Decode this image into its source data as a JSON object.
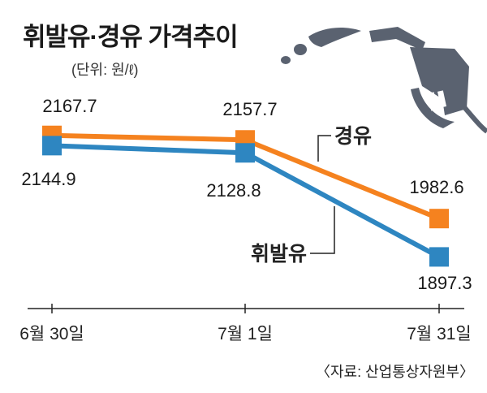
{
  "title": "휘발유·경유 가격추이",
  "unit": "(단위: 원/ℓ)",
  "source": "〈자료: 산업통상자원부〉",
  "colors": {
    "diesel": "#f5821f",
    "gasoline": "#2e86c1",
    "pump": "#5a6270"
  },
  "icon": "fuel-pump-icon",
  "chart_data": {
    "type": "line",
    "categories": [
      "6월 30일",
      "7월 1일",
      "7월 31일"
    ],
    "series": [
      {
        "name": "경유",
        "key": "diesel",
        "values": [
          2167.7,
          2157.7,
          1982.6
        ]
      },
      {
        "name": "휘발유",
        "key": "gasoline",
        "values": [
          2144.9,
          2128.8,
          1897.3
        ]
      }
    ],
    "value_labels": {
      "diesel": [
        "2167.7",
        "2157.7",
        "1982.6"
      ],
      "gasoline": [
        "2144.9",
        "2128.8",
        "1897.3"
      ]
    },
    "xlabel": "",
    "ylabel": "",
    "grid": false,
    "legend": "inline callouts"
  }
}
